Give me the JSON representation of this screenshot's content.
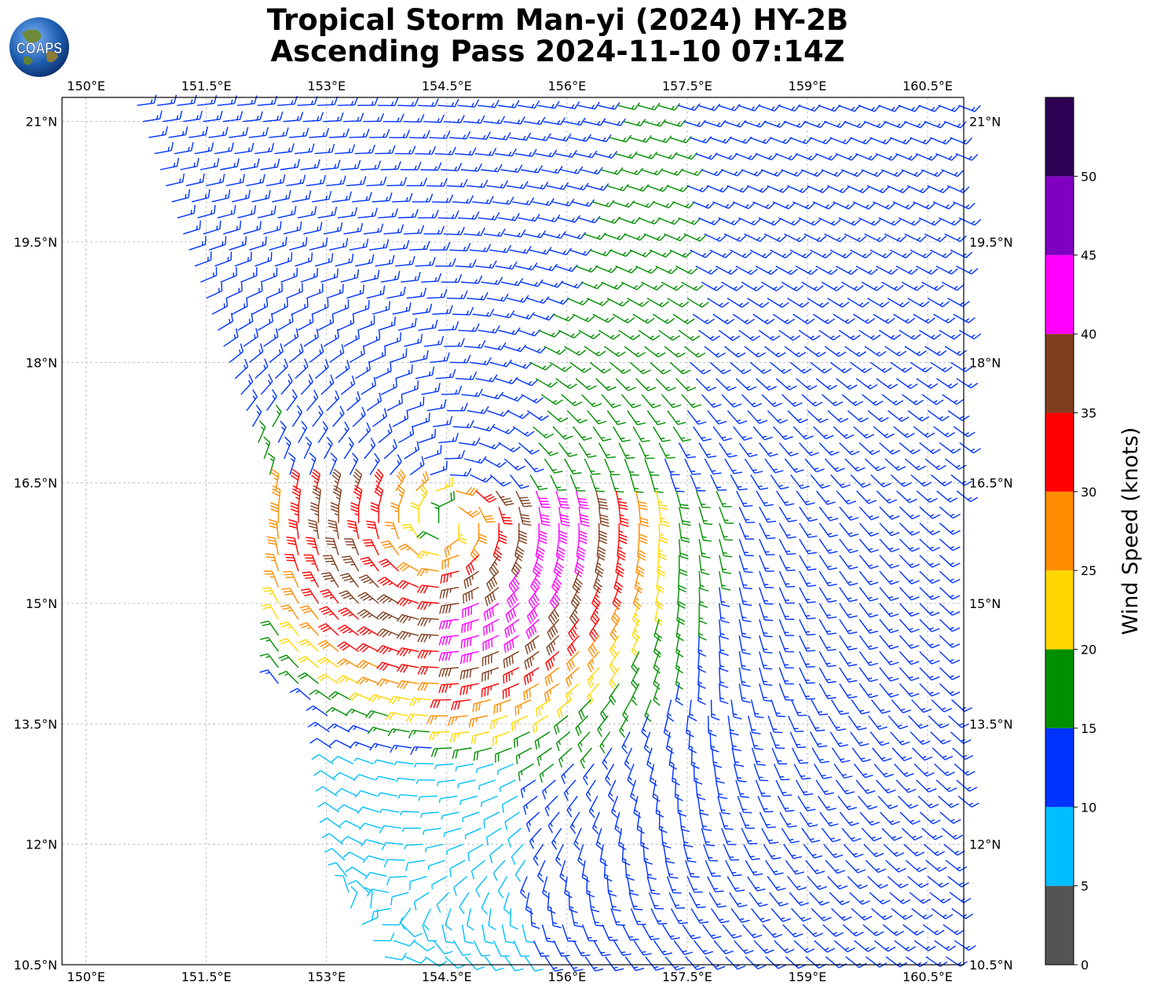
{
  "title": {
    "line1": "Tropical Storm Man-yi (2024) HY-2B",
    "line2": "Ascending Pass 2024-11-10 07:14Z"
  },
  "logo": {
    "text": "COAPS"
  },
  "map": {
    "lon_range": [
      149.7,
      160.95
    ],
    "lat_range": [
      10.5,
      21.3
    ],
    "grid": true,
    "lon_ticks": [
      {
        "value": 150.0,
        "label": "150°E"
      },
      {
        "value": 151.5,
        "label": "151.5°E"
      },
      {
        "value": 153.0,
        "label": "153°E"
      },
      {
        "value": 154.5,
        "label": "154.5°E"
      },
      {
        "value": 156.0,
        "label": "156°E"
      },
      {
        "value": 157.5,
        "label": "157.5°E"
      },
      {
        "value": 159.0,
        "label": "159°E"
      },
      {
        "value": 160.5,
        "label": "160.5°E"
      }
    ],
    "lat_ticks": [
      {
        "value": 21.0,
        "label": "21°N"
      },
      {
        "value": 19.5,
        "label": "19.5°N"
      },
      {
        "value": 18.0,
        "label": "18°N"
      },
      {
        "value": 16.5,
        "label": "16.5°N"
      },
      {
        "value": 15.0,
        "label": "15°N"
      },
      {
        "value": 13.5,
        "label": "13.5°N"
      },
      {
        "value": 12.0,
        "label": "12°N"
      },
      {
        "value": 10.5,
        "label": "10.5°N"
      }
    ],
    "storm_center": {
      "lon": 154.5,
      "lat": 16.0
    },
    "swath_west_edge": [
      [
        150.6,
        21.3
      ],
      [
        152.4,
        16.3
      ],
      [
        152.4,
        14.0
      ],
      [
        153.0,
        13.7
      ],
      [
        153.3,
        11.2
      ],
      [
        153.8,
        10.5
      ]
    ]
  },
  "colorbar": {
    "label": "Wind Speed (knots)",
    "bins": [
      {
        "min": 0,
        "max": 5,
        "color": "#545454"
      },
      {
        "min": 5,
        "max": 10,
        "color": "#00bfff"
      },
      {
        "min": 10,
        "max": 15,
        "color": "#0033ff"
      },
      {
        "min": 15,
        "max": 20,
        "color": "#008f00"
      },
      {
        "min": 20,
        "max": 25,
        "color": "#ffd700"
      },
      {
        "min": 25,
        "max": 30,
        "color": "#ff8c00"
      },
      {
        "min": 30,
        "max": 35,
        "color": "#ff0000"
      },
      {
        "min": 35,
        "max": 40,
        "color": "#7f3f1f"
      },
      {
        "min": 40,
        "max": 45,
        "color": "#ff00ff"
      },
      {
        "min": 45,
        "max": 50,
        "color": "#8000c0"
      },
      {
        "min": 50,
        "max": 55,
        "color": "#2d0054"
      }
    ],
    "ticks": [
      "0",
      "5",
      "10",
      "15",
      "20",
      "25",
      "30",
      "35",
      "40",
      "45",
      "50"
    ]
  }
}
